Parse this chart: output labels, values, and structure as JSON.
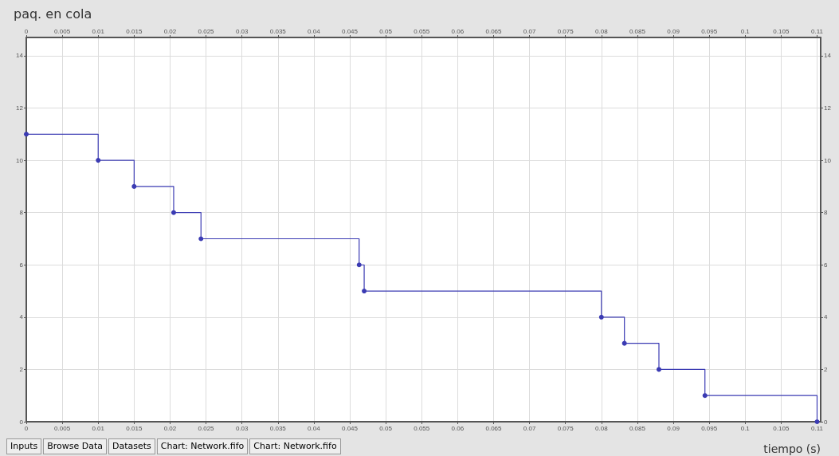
{
  "chart_data": {
    "type": "step",
    "title": "paq. en cola",
    "xlabel": "tiempo (s)",
    "x": [
      0,
      0.01,
      0.015,
      0.0205,
      0.0243,
      0.0463,
      0.047,
      0.08,
      0.0832,
      0.088,
      0.0944,
      0.11
    ],
    "series": [
      {
        "color": "#3b3bb3",
        "values": [
          11,
          10,
          9,
          8,
          7,
          6,
          5,
          4,
          3,
          2,
          1,
          0
        ]
      }
    ],
    "xlim": [
      0,
      0.1105
    ],
    "xticks": [
      0,
      0.005,
      0.01,
      0.015,
      0.02,
      0.025,
      0.03,
      0.035,
      0.04,
      0.045,
      0.05,
      0.055,
      0.06,
      0.065,
      0.07,
      0.075,
      0.08,
      0.085,
      0.09,
      0.095,
      0.1,
      0.105,
      0.11
    ],
    "x2lim": [
      0,
      0.1105
    ],
    "x2ticks": [
      0,
      0.005,
      0.01,
      0.015,
      0.02,
      0.025,
      0.03,
      0.035,
      0.04,
      0.045,
      0.05,
      0.055,
      0.06,
      0.065,
      0.07,
      0.075,
      0.08,
      0.085,
      0.09,
      0.095,
      0.1,
      0.105,
      0.11
    ],
    "ylim": [
      0,
      14.7
    ],
    "yticks": [
      0,
      2,
      4,
      6,
      8,
      10,
      12,
      14
    ],
    "y2lim": [
      0,
      14.7
    ],
    "y2ticks": [
      0,
      2,
      4,
      6,
      8,
      10,
      12,
      14
    ],
    "grid": true,
    "marker": "circle",
    "line_style": "solid",
    "annotations": [
      "Inputs",
      "Browse Data",
      "Datasets",
      "Chart: Network.fifo",
      "Chart: Network.fifo"
    ]
  }
}
